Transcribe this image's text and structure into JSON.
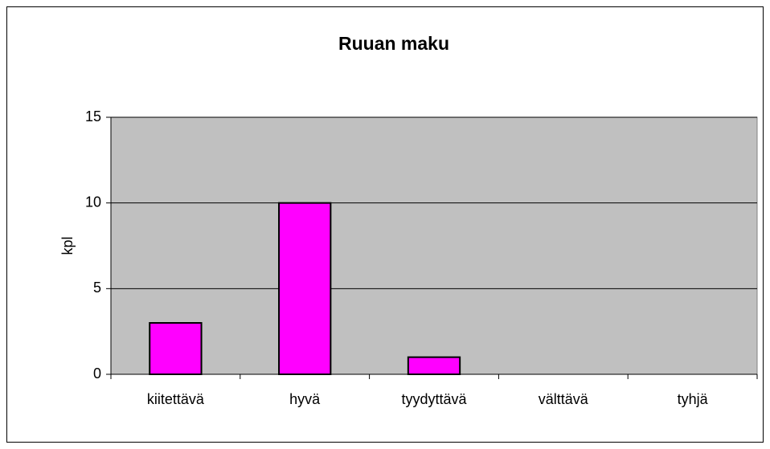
{
  "chart_data": {
    "type": "bar",
    "title": "Ruuan maku",
    "y_label": "kpl",
    "categories": [
      "kiitettävä",
      "hyvä",
      "tyydyttävä",
      "välttävä",
      "tyhjä"
    ],
    "values": [
      3,
      10,
      1,
      0,
      0
    ],
    "color": "#ff00ff",
    "ylim": [
      0,
      15
    ],
    "yticks": [
      0,
      5,
      10,
      15
    ],
    "grid": true
  }
}
